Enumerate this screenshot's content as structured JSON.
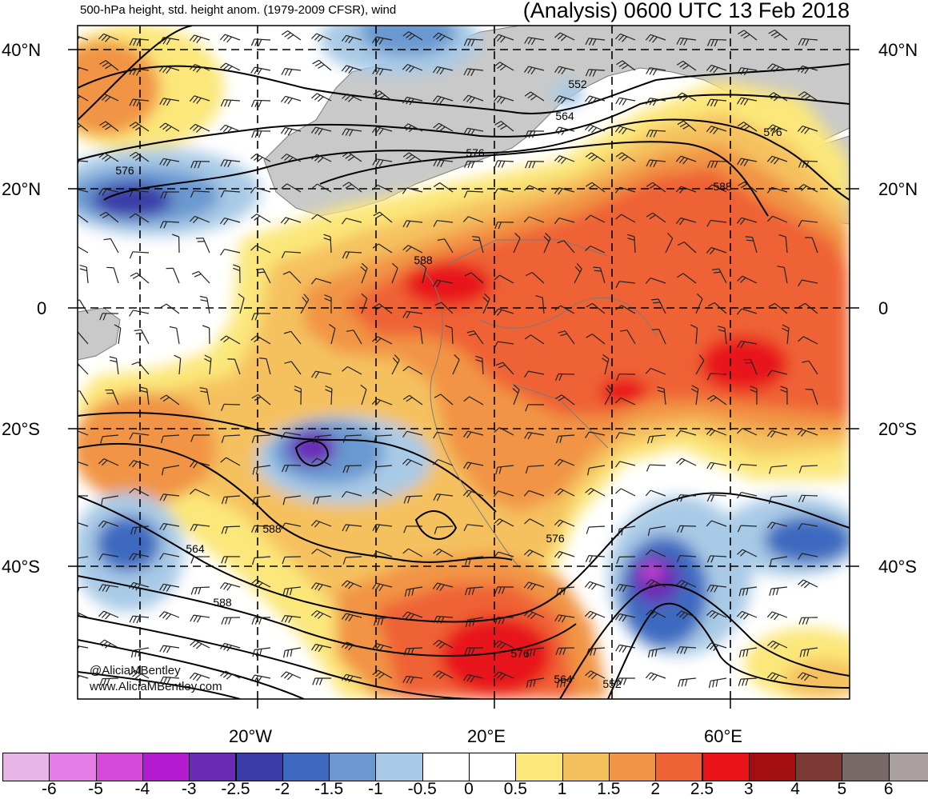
{
  "header": {
    "left_title": "500-hPa height, std. height anom. (1979-2009 CFSR), wind",
    "right_title": "(Analysis) 0600 UTC 13 Feb 2018"
  },
  "map": {
    "lat_labels": [
      "40°N",
      "20°N",
      "0",
      "20°S",
      "40°S"
    ],
    "lon_labels": [
      "20°W",
      "20°E",
      "60°E"
    ],
    "contour_labels": [
      "552",
      "564",
      "576",
      "576",
      "588",
      "576",
      "588",
      "588",
      "576",
      "564",
      "588",
      "576",
      "564",
      "552"
    ],
    "credits": [
      "@AliciaMBentley",
      "www.AliciaMBentley.com"
    ]
  },
  "colorbar": {
    "labels": [
      "-6",
      "-5",
      "-4",
      "-3",
      "-2.5",
      "-2",
      "-1.5",
      "-1",
      "-0.5",
      "0",
      "0.5",
      "1",
      "1.5",
      "2",
      "2.5",
      "3",
      "4",
      "5",
      "6"
    ],
    "colors": [
      "#e8b6e6",
      "#e57ee6",
      "#d64ad9",
      "#b21bcf",
      "#6b2bb5",
      "#3b3ca8",
      "#3d6ac0",
      "#6b98d0",
      "#a9cae6",
      "#ffffff",
      "#ffffff",
      "#fbe77a",
      "#f5c15f",
      "#f19445",
      "#ef6236",
      "#e8141a",
      "#a30f10",
      "#7b3a34",
      "#786866",
      "#aaa0a0"
    ]
  }
}
